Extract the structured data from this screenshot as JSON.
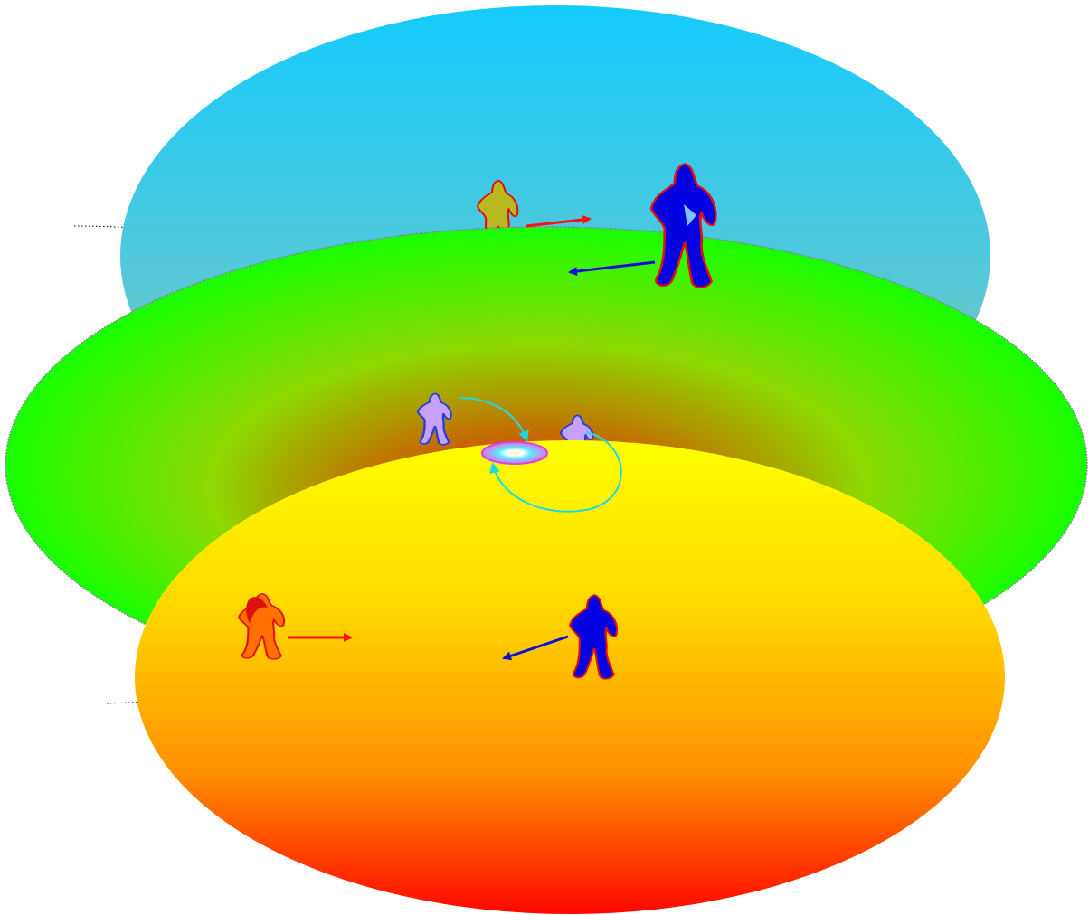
{
  "diagram": {
    "layers": [
      {
        "name": "top-layer",
        "fill": "gradient",
        "colors": [
          "#15cbfd",
          "#8bc88c"
        ]
      },
      {
        "name": "middle-layer",
        "fill": "radial-gradient",
        "colors": [
          "#e01010",
          "#c85a00",
          "#90d000",
          "#20ff00"
        ]
      },
      {
        "name": "bottom-layer",
        "fill": "gradient",
        "colors": [
          "#ffff00",
          "#ffc000",
          "#ff1000"
        ]
      }
    ],
    "figures": [
      {
        "name": "top-small-figure",
        "fill": "#b8b820",
        "outline": "#e01010"
      },
      {
        "name": "top-large-figure",
        "fill": "#0000e0",
        "outline": "#e01010"
      },
      {
        "name": "middle-left-figure",
        "fill": "#c8a0ff",
        "outline": "#2040e0"
      },
      {
        "name": "middle-right-figure",
        "fill": "#c8a0ff",
        "outline": "#2040e0"
      },
      {
        "name": "bottom-left-figure",
        "fill": "#ff7000",
        "outline": "#e01010"
      },
      {
        "name": "bottom-right-figure",
        "fill": "#0000e0",
        "outline": "#e01010"
      }
    ],
    "arrows": [
      {
        "name": "top-red-arrow",
        "color": "#ff1010"
      },
      {
        "name": "top-blue-arrow",
        "color": "#1010d0"
      },
      {
        "name": "bottom-red-arrow",
        "color": "#ff1010"
      },
      {
        "name": "bottom-blue-arrow",
        "color": "#1010d0"
      },
      {
        "name": "cyan-curve-left",
        "color": "#20d8e0"
      },
      {
        "name": "cyan-loop-right",
        "color": "#20d8e0"
      }
    ],
    "disc": {
      "outer": "#e040e0",
      "inner": "#40e0ff",
      "core": "#ffff80"
    }
  }
}
